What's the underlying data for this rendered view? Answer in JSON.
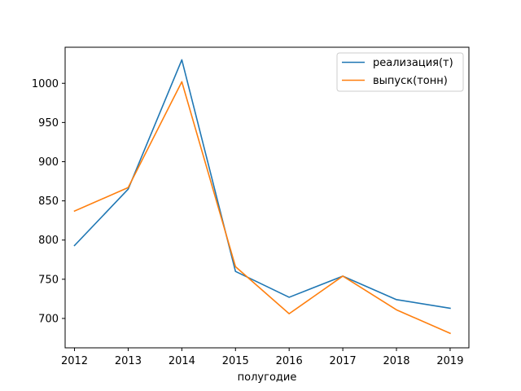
{
  "chart_data": {
    "type": "line",
    "title": "",
    "xlabel": "полугодие",
    "ylabel": "",
    "x": [
      2012,
      2013,
      2014,
      2015,
      2016,
      2017,
      2018,
      2019
    ],
    "xlim": [
      2011.825,
      2019.35
    ],
    "ylim": [
      662.5,
      1046
    ],
    "yticks": [
      700,
      750,
      800,
      850,
      900,
      950,
      1000
    ],
    "grid": false,
    "legend": "upper right",
    "series": [
      {
        "name": "реализация(т)",
        "color": "#1f77b4",
        "values": [
          793,
          865,
          1030,
          760,
          727,
          754,
          724,
          713
        ]
      },
      {
        "name": "выпуск(тонн)",
        "color": "#ff7f0e",
        "values": [
          837,
          867,
          1002,
          766,
          706,
          754,
          711,
          681
        ]
      }
    ]
  }
}
